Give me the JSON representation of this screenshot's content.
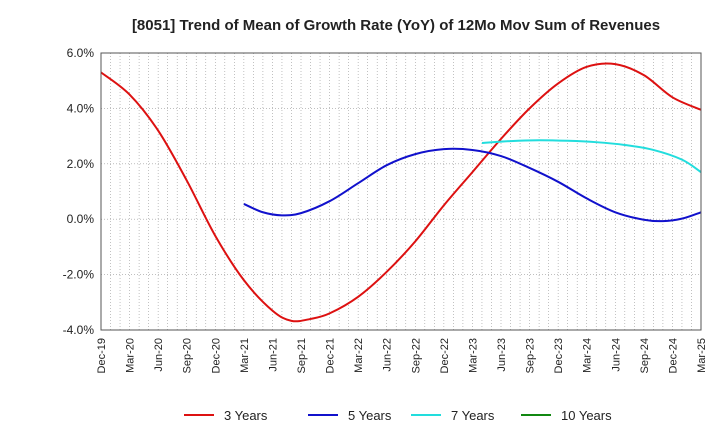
{
  "chart_data": {
    "type": "line",
    "title": "[8051]  Trend of Mean of Growth Rate (YoY) of 12Mo Mov Sum of Revenues",
    "xlabel": "",
    "ylabel": "",
    "ylim": [
      -4.0,
      6.0
    ],
    "yticks": [
      -4.0,
      -2.0,
      0.0,
      2.0,
      4.0,
      6.0
    ],
    "ytick_labels": [
      "-4.0%",
      "-2.0%",
      "0.0%",
      "2.0%",
      "4.0%",
      "6.0%"
    ],
    "x_months": 63,
    "xtick_labels": [
      "Dec-19",
      "Mar-20",
      "Jun-20",
      "Sep-20",
      "Dec-20",
      "Mar-21",
      "Jun-21",
      "Sep-21",
      "Dec-21",
      "Mar-22",
      "Jun-22",
      "Sep-22",
      "Dec-22",
      "Mar-23",
      "Jun-23",
      "Sep-23",
      "Dec-23",
      "Mar-24",
      "Jun-24",
      "Sep-24",
      "Dec-24",
      "Mar-25"
    ],
    "grid": true,
    "legend_position": "bottom",
    "series": [
      {
        "name": "3 Years",
        "color": "#dd1111",
        "points": [
          [
            0,
            5.3
          ],
          [
            3,
            4.5
          ],
          [
            6,
            3.2
          ],
          [
            9,
            1.4
          ],
          [
            12,
            -0.6
          ],
          [
            15,
            -2.2
          ],
          [
            18,
            -3.3
          ],
          [
            20,
            -3.67
          ],
          [
            22,
            -3.6
          ],
          [
            24,
            -3.4
          ],
          [
            27,
            -2.8
          ],
          [
            30,
            -1.9
          ],
          [
            33,
            -0.8
          ],
          [
            36,
            0.5
          ],
          [
            39,
            1.7
          ],
          [
            42,
            2.9
          ],
          [
            45,
            4.0
          ],
          [
            48,
            4.9
          ],
          [
            51,
            5.5
          ],
          [
            54,
            5.6
          ],
          [
            57,
            5.2
          ],
          [
            60,
            4.4
          ],
          [
            63,
            3.95
          ]
        ]
      },
      {
        "name": "5 Years",
        "color": "#1111cc",
        "points": [
          [
            15,
            0.55
          ],
          [
            17,
            0.25
          ],
          [
            19,
            0.14
          ],
          [
            21,
            0.22
          ],
          [
            24,
            0.65
          ],
          [
            27,
            1.3
          ],
          [
            30,
            1.95
          ],
          [
            33,
            2.35
          ],
          [
            36,
            2.53
          ],
          [
            39,
            2.5
          ],
          [
            42,
            2.28
          ],
          [
            45,
            1.85
          ],
          [
            48,
            1.35
          ],
          [
            51,
            0.75
          ],
          [
            54,
            0.25
          ],
          [
            57,
            -0.02
          ],
          [
            59,
            -0.07
          ],
          [
            61,
            0.02
          ],
          [
            63,
            0.25
          ]
        ]
      },
      {
        "name": "7 Years",
        "color": "#22dddd",
        "points": [
          [
            40,
            2.75
          ],
          [
            43,
            2.82
          ],
          [
            46,
            2.85
          ],
          [
            49,
            2.83
          ],
          [
            52,
            2.78
          ],
          [
            55,
            2.68
          ],
          [
            58,
            2.5
          ],
          [
            61,
            2.15
          ],
          [
            63,
            1.7
          ]
        ]
      },
      {
        "name": "10 Years",
        "color": "#118811",
        "points": []
      }
    ]
  }
}
